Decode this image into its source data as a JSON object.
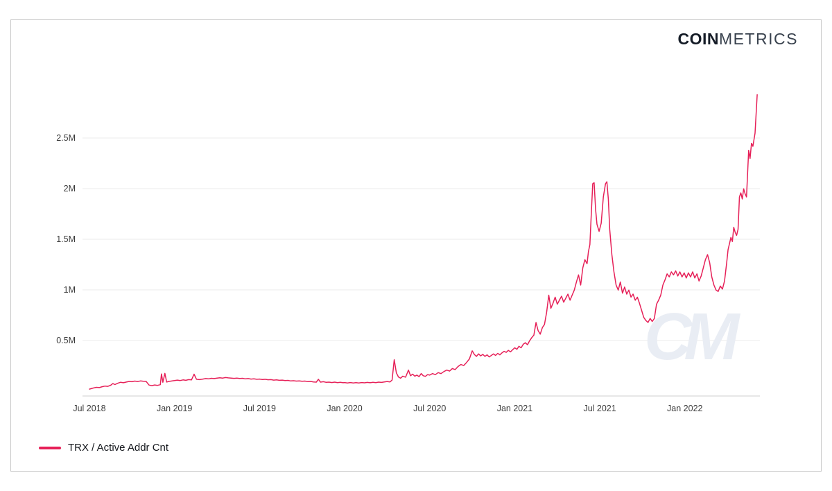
{
  "logo": {
    "bold": "COIN",
    "light": "METRICS"
  },
  "watermark": "CM",
  "colors": {
    "line": "#e62058",
    "grid": "#ebebeb",
    "axis": "#cfcfcf",
    "tick_text": "#3c3c3c",
    "watermark": "#e9edf4",
    "frame_border": "#c9c9c9",
    "logo_bold": "#151c27",
    "logo_light": "#39424e"
  },
  "chart_data": {
    "type": "line",
    "title": "",
    "xlabel": "",
    "ylabel": "",
    "x_unit": "months since Jul 2018",
    "xlim_months": [
      -1.6,
      47.3
    ],
    "ylim": [
      0,
      3.0
    ],
    "grid": "horizontal",
    "legend_position": "bottom-left",
    "y_ticks": [
      {
        "v": 0.5,
        "label": "0.5M"
      },
      {
        "v": 1.0,
        "label": "1M"
      },
      {
        "v": 1.5,
        "label": "1.5M"
      },
      {
        "v": 2.0,
        "label": "2M"
      },
      {
        "v": 2.5,
        "label": "2.5M"
      }
    ],
    "x_ticks": [
      {
        "t": 0,
        "label": "Jul 2018"
      },
      {
        "t": 6,
        "label": "Jan 2019"
      },
      {
        "t": 12,
        "label": "Jul 2019"
      },
      {
        "t": 18,
        "label": "Jan 2020"
      },
      {
        "t": 24,
        "label": "Jul 2020"
      },
      {
        "t": 30,
        "label": "Jan 2021"
      },
      {
        "t": 36,
        "label": "Jul 2021"
      },
      {
        "t": 42,
        "label": "Jan 2022"
      }
    ],
    "series": [
      {
        "name": "TRX / Active Addr Cnt",
        "color": "#e62058",
        "unit": "M addresses",
        "points": [
          [
            0,
            0.02
          ],
          [
            0.25,
            0.03
          ],
          [
            0.5,
            0.038
          ],
          [
            0.7,
            0.035
          ],
          [
            0.9,
            0.044
          ],
          [
            1.1,
            0.05
          ],
          [
            1.3,
            0.047
          ],
          [
            1.5,
            0.058
          ],
          [
            1.65,
            0.075
          ],
          [
            1.8,
            0.065
          ],
          [
            2,
            0.078
          ],
          [
            2.2,
            0.088
          ],
          [
            2.4,
            0.083
          ],
          [
            2.6,
            0.09
          ],
          [
            2.8,
            0.096
          ],
          [
            3,
            0.093
          ],
          [
            3.2,
            0.099
          ],
          [
            3.4,
            0.095
          ],
          [
            3.6,
            0.101
          ],
          [
            3.8,
            0.098
          ],
          [
            4,
            0.096
          ],
          [
            4.2,
            0.06
          ],
          [
            4.4,
            0.054
          ],
          [
            4.6,
            0.061
          ],
          [
            4.8,
            0.057
          ],
          [
            5,
            0.064
          ],
          [
            5.08,
            0.17
          ],
          [
            5.18,
            0.088
          ],
          [
            5.32,
            0.175
          ],
          [
            5.45,
            0.09
          ],
          [
            5.6,
            0.096
          ],
          [
            5.8,
            0.1
          ],
          [
            6,
            0.104
          ],
          [
            6.2,
            0.109
          ],
          [
            6.4,
            0.105
          ],
          [
            6.6,
            0.111
          ],
          [
            6.8,
            0.107
          ],
          [
            7,
            0.114
          ],
          [
            7.2,
            0.111
          ],
          [
            7.38,
            0.168
          ],
          [
            7.55,
            0.117
          ],
          [
            7.75,
            0.114
          ],
          [
            8,
            0.119
          ],
          [
            8.2,
            0.124
          ],
          [
            8.4,
            0.121
          ],
          [
            8.6,
            0.127
          ],
          [
            8.8,
            0.124
          ],
          [
            9,
            0.129
          ],
          [
            9.2,
            0.132
          ],
          [
            9.4,
            0.129
          ],
          [
            9.6,
            0.134
          ],
          [
            9.8,
            0.131
          ],
          [
            10,
            0.129
          ],
          [
            10.2,
            0.126
          ],
          [
            10.4,
            0.129
          ],
          [
            10.6,
            0.125
          ],
          [
            10.8,
            0.127
          ],
          [
            11,
            0.121
          ],
          [
            11.2,
            0.124
          ],
          [
            11.4,
            0.119
          ],
          [
            11.6,
            0.122
          ],
          [
            11.8,
            0.117
          ],
          [
            12,
            0.119
          ],
          [
            12.2,
            0.115
          ],
          [
            12.4,
            0.117
          ],
          [
            12.6,
            0.112
          ],
          [
            12.8,
            0.114
          ],
          [
            13,
            0.109
          ],
          [
            13.2,
            0.111
          ],
          [
            13.4,
            0.107
          ],
          [
            13.6,
            0.109
          ],
          [
            13.8,
            0.104
          ],
          [
            14,
            0.106
          ],
          [
            14.2,
            0.101
          ],
          [
            14.4,
            0.103
          ],
          [
            14.6,
            0.099
          ],
          [
            14.8,
            0.101
          ],
          [
            15,
            0.097
          ],
          [
            15.2,
            0.099
          ],
          [
            15.4,
            0.094
          ],
          [
            15.6,
            0.096
          ],
          [
            15.8,
            0.091
          ],
          [
            16,
            0.089
          ],
          [
            16.15,
            0.117
          ],
          [
            16.3,
            0.089
          ],
          [
            16.5,
            0.093
          ],
          [
            16.7,
            0.087
          ],
          [
            16.9,
            0.089
          ],
          [
            17.1,
            0.085
          ],
          [
            17.3,
            0.089
          ],
          [
            17.5,
            0.084
          ],
          [
            17.7,
            0.087
          ],
          [
            17.9,
            0.083
          ],
          [
            18,
            0.085
          ],
          [
            18.2,
            0.081
          ],
          [
            18.4,
            0.085
          ],
          [
            18.6,
            0.081
          ],
          [
            18.8,
            0.084
          ],
          [
            19,
            0.081
          ],
          [
            19.2,
            0.085
          ],
          [
            19.4,
            0.082
          ],
          [
            19.6,
            0.086
          ],
          [
            19.8,
            0.083
          ],
          [
            20,
            0.087
          ],
          [
            20.2,
            0.084
          ],
          [
            20.4,
            0.089
          ],
          [
            20.6,
            0.086
          ],
          [
            20.8,
            0.091
          ],
          [
            21,
            0.095
          ],
          [
            21.2,
            0.091
          ],
          [
            21.35,
            0.109
          ],
          [
            21.5,
            0.31
          ],
          [
            21.65,
            0.18
          ],
          [
            21.8,
            0.14
          ],
          [
            21.95,
            0.128
          ],
          [
            22.1,
            0.148
          ],
          [
            22.3,
            0.138
          ],
          [
            22.5,
            0.208
          ],
          [
            22.65,
            0.152
          ],
          [
            22.8,
            0.168
          ],
          [
            22.95,
            0.148
          ],
          [
            23.1,
            0.158
          ],
          [
            23.25,
            0.143
          ],
          [
            23.4,
            0.173
          ],
          [
            23.55,
            0.152
          ],
          [
            23.7,
            0.146
          ],
          [
            23.85,
            0.163
          ],
          [
            24,
            0.158
          ],
          [
            24.2,
            0.173
          ],
          [
            24.4,
            0.163
          ],
          [
            24.6,
            0.183
          ],
          [
            24.8,
            0.173
          ],
          [
            25,
            0.193
          ],
          [
            25.2,
            0.208
          ],
          [
            25.4,
            0.198
          ],
          [
            25.6,
            0.223
          ],
          [
            25.8,
            0.213
          ],
          [
            26,
            0.243
          ],
          [
            26.2,
            0.263
          ],
          [
            26.4,
            0.253
          ],
          [
            26.6,
            0.283
          ],
          [
            26.8,
            0.318
          ],
          [
            27,
            0.398
          ],
          [
            27.15,
            0.363
          ],
          [
            27.3,
            0.343
          ],
          [
            27.45,
            0.368
          ],
          [
            27.6,
            0.348
          ],
          [
            27.75,
            0.363
          ],
          [
            27.9,
            0.343
          ],
          [
            28.05,
            0.358
          ],
          [
            28.2,
            0.338
          ],
          [
            28.35,
            0.353
          ],
          [
            28.5,
            0.368
          ],
          [
            28.65,
            0.353
          ],
          [
            28.8,
            0.373
          ],
          [
            28.95,
            0.358
          ],
          [
            29.1,
            0.378
          ],
          [
            29.25,
            0.393
          ],
          [
            29.4,
            0.383
          ],
          [
            29.55,
            0.403
          ],
          [
            29.7,
            0.388
          ],
          [
            29.85,
            0.408
          ],
          [
            30,
            0.428
          ],
          [
            30.15,
            0.413
          ],
          [
            30.3,
            0.443
          ],
          [
            30.45,
            0.428
          ],
          [
            30.6,
            0.463
          ],
          [
            30.75,
            0.478
          ],
          [
            30.9,
            0.458
          ],
          [
            31.05,
            0.498
          ],
          [
            31.2,
            0.528
          ],
          [
            31.35,
            0.553
          ],
          [
            31.5,
            0.678
          ],
          [
            31.65,
            0.598
          ],
          [
            31.8,
            0.563
          ],
          [
            31.95,
            0.628
          ],
          [
            32.1,
            0.658
          ],
          [
            32.25,
            0.778
          ],
          [
            32.4,
            0.948
          ],
          [
            32.55,
            0.818
          ],
          [
            32.7,
            0.868
          ],
          [
            32.85,
            0.928
          ],
          [
            33,
            0.858
          ],
          [
            33.15,
            0.898
          ],
          [
            33.3,
            0.938
          ],
          [
            33.45,
            0.878
          ],
          [
            33.6,
            0.918
          ],
          [
            33.75,
            0.958
          ],
          [
            33.9,
            0.898
          ],
          [
            34.05,
            0.948
          ],
          [
            34.2,
            0.998
          ],
          [
            34.35,
            1.078
          ],
          [
            34.5,
            1.148
          ],
          [
            34.65,
            1.048
          ],
          [
            34.8,
            1.218
          ],
          [
            34.95,
            1.298
          ],
          [
            35.1,
            1.258
          ],
          [
            35.2,
            1.378
          ],
          [
            35.3,
            1.448
          ],
          [
            35.4,
            1.748
          ],
          [
            35.5,
            2.048
          ],
          [
            35.6,
            2.058
          ],
          [
            35.7,
            1.798
          ],
          [
            35.8,
            1.648
          ],
          [
            35.95,
            1.578
          ],
          [
            36.1,
            1.658
          ],
          [
            36.25,
            1.918
          ],
          [
            36.4,
            2.048
          ],
          [
            36.5,
            2.068
          ],
          [
            36.6,
            1.898
          ],
          [
            36.7,
            1.598
          ],
          [
            36.85,
            1.348
          ],
          [
            37,
            1.178
          ],
          [
            37.15,
            1.048
          ],
          [
            37.3,
            0.998
          ],
          [
            37.45,
            1.078
          ],
          [
            37.6,
            0.968
          ],
          [
            37.75,
            1.028
          ],
          [
            37.9,
            0.958
          ],
          [
            38.05,
            0.998
          ],
          [
            38.2,
            0.928
          ],
          [
            38.35,
            0.958
          ],
          [
            38.5,
            0.898
          ],
          [
            38.65,
            0.928
          ],
          [
            38.8,
            0.868
          ],
          [
            38.95,
            0.798
          ],
          [
            39.1,
            0.728
          ],
          [
            39.25,
            0.698
          ],
          [
            39.4,
            0.678
          ],
          [
            39.55,
            0.718
          ],
          [
            39.7,
            0.688
          ],
          [
            39.85,
            0.718
          ],
          [
            40,
            0.858
          ],
          [
            40.15,
            0.898
          ],
          [
            40.3,
            0.948
          ],
          [
            40.45,
            1.048
          ],
          [
            40.6,
            1.098
          ],
          [
            40.75,
            1.158
          ],
          [
            40.9,
            1.128
          ],
          [
            41.05,
            1.178
          ],
          [
            41.2,
            1.148
          ],
          [
            41.35,
            1.188
          ],
          [
            41.5,
            1.138
          ],
          [
            41.65,
            1.178
          ],
          [
            41.8,
            1.128
          ],
          [
            41.95,
            1.168
          ],
          [
            42.1,
            1.118
          ],
          [
            42.25,
            1.168
          ],
          [
            42.4,
            1.128
          ],
          [
            42.55,
            1.178
          ],
          [
            42.7,
            1.118
          ],
          [
            42.85,
            1.158
          ],
          [
            43,
            1.088
          ],
          [
            43.15,
            1.138
          ],
          [
            43.3,
            1.218
          ],
          [
            43.45,
            1.298
          ],
          [
            43.6,
            1.348
          ],
          [
            43.75,
            1.268
          ],
          [
            43.9,
            1.128
          ],
          [
            44.05,
            1.048
          ],
          [
            44.2,
            0.998
          ],
          [
            44.35,
            0.985
          ],
          [
            44.5,
            1.038
          ],
          [
            44.65,
            1.008
          ],
          [
            44.8,
            1.088
          ],
          [
            44.95,
            1.268
          ],
          [
            45.05,
            1.398
          ],
          [
            45.15,
            1.458
          ],
          [
            45.25,
            1.518
          ],
          [
            45.35,
            1.478
          ],
          [
            45.45,
            1.618
          ],
          [
            45.55,
            1.568
          ],
          [
            45.65,
            1.538
          ],
          [
            45.75,
            1.598
          ],
          [
            45.85,
            1.918
          ],
          [
            45.95,
            1.958
          ],
          [
            46.05,
            1.898
          ],
          [
            46.15,
            1.998
          ],
          [
            46.25,
            1.948
          ],
          [
            46.35,
            1.918
          ],
          [
            46.5,
            2.378
          ],
          [
            46.6,
            2.298
          ],
          [
            46.7,
            2.448
          ],
          [
            46.8,
            2.418
          ],
          [
            46.95,
            2.548
          ],
          [
            47.1,
            2.928
          ]
        ]
      }
    ]
  }
}
